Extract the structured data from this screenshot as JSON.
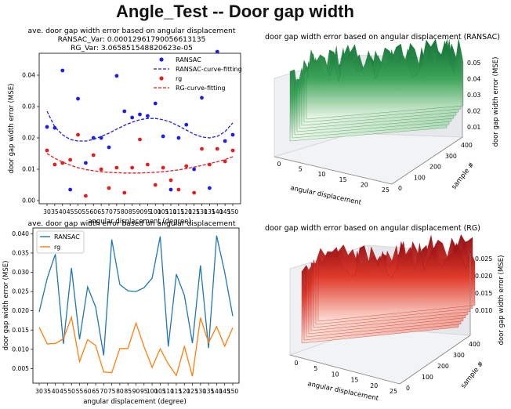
{
  "suptitle": "Angle_Test -- Door gap width",
  "chart_data": [
    {
      "type": "scatter",
      "title": "ave. door gap width error based on angular displacement",
      "subtitle_lines": [
        "RANSAC_Var: 0.00012961790056613135",
        "RG_Var: 3.065851548820623e-05"
      ],
      "xlabel": "angular displacement (degree)",
      "ylabel": "door gap width error (MSE)",
      "categories": [
        "30",
        "35",
        "40",
        "45",
        "50",
        "55",
        "60",
        "65",
        "70",
        "75",
        "80",
        "85",
        "90",
        "95",
        "100",
        "105",
        "110",
        "115",
        "120",
        "125",
        "130",
        "135",
        "140",
        "145",
        "150"
      ],
      "yticks": [
        "0.00",
        "0.01",
        "0.02",
        "0.03",
        "0.04"
      ],
      "ylim": [
        -0.001,
        0.047
      ],
      "legend": "top-right",
      "series": [
        {
          "name": "RANSAC",
          "mark": "point",
          "color": "#1f1fe0",
          "values": [
            0.0235,
            0.0232,
            0.0415,
            0.0035,
            0.0325,
            0.012,
            0.02,
            0.02,
            0.017,
            0.0398,
            0.0285,
            0.0265,
            0.0275,
            0.027,
            0.031,
            0.0205,
            0.0035,
            0.02,
            0.0242,
            0.01,
            0.0328,
            0.004,
            0.0475,
            0.019,
            0.021
          ]
        },
        {
          "name": "RANSAC-curve-fitting",
          "mark": "dashed-line",
          "color": "#1f1fe0",
          "values": [
            0.0285,
            0.0235,
            0.021,
            0.0195,
            0.019,
            0.019,
            0.0195,
            0.0205,
            0.0215,
            0.0228,
            0.024,
            0.025,
            0.0258,
            0.0262,
            0.0262,
            0.0258,
            0.025,
            0.0238,
            0.0225,
            0.0212,
            0.0203,
            0.02,
            0.0205,
            0.022,
            0.0248
          ]
        },
        {
          "name": "rg",
          "mark": "point",
          "color": "#e01f1f",
          "values": [
            0.016,
            0.0115,
            0.012,
            0.013,
            0.021,
            0.0015,
            0.0145,
            0.01,
            0.004,
            0.0105,
            0.0025,
            0.0105,
            0.0195,
            0.0115,
            0.005,
            0.0105,
            0.0065,
            0.0035,
            0.011,
            0.0025,
            0.0165,
            0.0115,
            0.0165,
            0.0125,
            0.016
          ]
        },
        {
          "name": "RG-curve-fitting",
          "mark": "dashed-line",
          "color": "#e01f1f",
          "values": [
            0.015,
            0.0135,
            0.0123,
            0.0113,
            0.0105,
            0.0099,
            0.0095,
            0.0092,
            0.009,
            0.0089,
            0.0088,
            0.0088,
            0.0088,
            0.0089,
            0.009,
            0.0092,
            0.0095,
            0.0098,
            0.0102,
            0.0107,
            0.0112,
            0.0118,
            0.0124,
            0.0131,
            0.014
          ]
        }
      ]
    },
    {
      "type": "surface3d",
      "title": "door gap width error based on angular displacement (RANSAC)",
      "xlabel": "angular displacement",
      "ylabel": "sample #",
      "zlabel": "door gap width error (MSE)",
      "xticks": [
        "0",
        "5",
        "10",
        "15",
        "20",
        "25"
      ],
      "yticks": [
        "0",
        "100",
        "200",
        "300",
        "400"
      ],
      "zticks": [
        "0.01",
        "0.02",
        "0.03",
        "0.04",
        "0.05"
      ],
      "colormap": "Greens"
    },
    {
      "type": "line",
      "title": "ave. door gap width error based on angular displacement",
      "xlabel": "angular displacement (degree)",
      "ylabel": "door gap width error (MSE)",
      "categories": [
        "30",
        "35",
        "40",
        "45",
        "50",
        "55",
        "60",
        "65",
        "70",
        "75",
        "80",
        "85",
        "90",
        "95",
        "100",
        "105",
        "110",
        "115",
        "120",
        "125",
        "130",
        "135",
        "140",
        "145",
        "150"
      ],
      "yticks": [
        "0.005",
        "0.010",
        "0.015",
        "0.020",
        "0.025",
        "0.030",
        "0.035",
        "0.040"
      ],
      "ylim": [
        0.0012,
        0.0415
      ],
      "legend": "top-left",
      "series": [
        {
          "name": "RANSAC",
          "color": "#1f77b4",
          "values": [
            0.0197,
            0.0285,
            0.0347,
            0.0114,
            0.0311,
            0.0126,
            0.0262,
            0.021,
            0.0084,
            0.0385,
            0.0268,
            0.0252,
            0.025,
            0.026,
            0.0285,
            0.0393,
            0.0107,
            0.0295,
            0.024,
            0.0116,
            0.0318,
            0.0103,
            0.0395,
            0.03,
            0.0186
          ]
        },
        {
          "name": "rg",
          "color": "#ff7f0e",
          "values": [
            0.0157,
            0.0114,
            0.0115,
            0.0127,
            0.0183,
            0.0068,
            0.0125,
            0.011,
            0.0041,
            0.0039,
            0.0102,
            0.0102,
            0.0168,
            0.0107,
            0.0053,
            0.0101,
            0.0062,
            0.0032,
            0.0107,
            0.003,
            0.0182,
            0.0117,
            0.0159,
            0.0108,
            0.0156
          ]
        }
      ]
    },
    {
      "type": "surface3d",
      "title": "door gap width error based on angular displacement (RG)",
      "xlabel": "angular displacement",
      "ylabel": "sample #",
      "zlabel": "door gap width error (MSE)",
      "xticks": [
        "0",
        "5",
        "10",
        "15",
        "20",
        "25"
      ],
      "yticks": [
        "0",
        "100",
        "200",
        "300",
        "400"
      ],
      "zticks": [
        "0.010",
        "0.015",
        "0.020",
        "0.025"
      ],
      "colormap": "Reds"
    }
  ]
}
